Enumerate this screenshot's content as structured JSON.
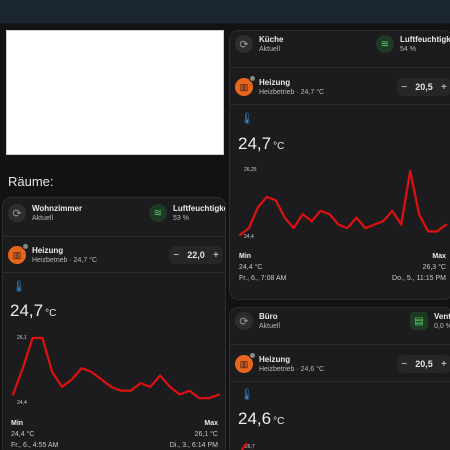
{
  "section_title": "Räume:",
  "wohnzimmer": {
    "room_name": "Wohnzimmer",
    "room_state": "Aktuell",
    "humidity_label": "Luftfeuchtigkeit",
    "humidity_value": "53 %",
    "heating_name": "Heizung",
    "heating_state": "Heizbetrieb · 24,7 °C",
    "setpoint": "22,0",
    "temperature": "24,7",
    "temperature_unit": "°C",
    "chart_max_label": "26,1",
    "chart_min_label": "24,4",
    "min_label": "Min",
    "max_label": "Max",
    "min_value": "24,4 °C",
    "max_value": "26,1 °C",
    "min_time": "Fr., 6., 4:55 AM",
    "max_time": "Di., 3., 6:14 PM"
  },
  "kueche": {
    "room_name": "Küche",
    "room_state": "Aktuell",
    "humidity_label": "Luftfeuchtigkeit",
    "humidity_value": "54 %",
    "heating_name": "Heizung",
    "heating_state": "Heizbetrieb · 24,7 °C",
    "setpoint": "20,5",
    "temperature": "24,7",
    "temperature_unit": "°C",
    "chart_max_label": "26,25",
    "chart_min_label": "24,4",
    "min_label": "Min",
    "max_label": "Max",
    "min_value": "24,4 °C",
    "max_value": "26,3 °C",
    "min_time": "Fr., 6., 7:08 AM",
    "max_time": "Do., 5., 11:15 PM"
  },
  "buero": {
    "room_name": "Büro",
    "room_state": "Aktuell",
    "vent_label": "Venti",
    "vent_value": "0,0 %",
    "heating_name": "Heizung",
    "heating_state": "Heizbetrieb · 24,6 °C",
    "setpoint": "20,5",
    "temperature": "24,6",
    "temperature_unit": "°C",
    "chart_max_label": "26,7"
  },
  "stepper": {
    "minus": "−",
    "plus": "+"
  },
  "icons": {
    "room": "history-icon",
    "humidity": "humidity-icon",
    "heating": "radiator-icon",
    "thermometer": "thermometer-icon",
    "vent": "vent-icon"
  },
  "colors": {
    "line": "#e01010",
    "heating": "#e8651d",
    "humidity": "#5ccf6b",
    "thermometer": "#3a8fd9"
  },
  "chart_data": [
    {
      "type": "line",
      "name": "Wohnzimmer",
      "ylim": [
        24.4,
        26.1
      ],
      "values": [
        24.6,
        25.3,
        26.1,
        26.1,
        25.2,
        24.8,
        25.0,
        25.3,
        25.2,
        25.0,
        24.8,
        24.7,
        24.7,
        24.9,
        24.8,
        25.1,
        24.8,
        24.6,
        24.7,
        24.5,
        24.5,
        24.6
      ]
    },
    {
      "type": "line",
      "name": "Küche",
      "ylim": [
        24.4,
        26.25
      ],
      "values": [
        24.4,
        24.6,
        25.2,
        25.5,
        25.4,
        24.9,
        24.6,
        25.0,
        24.8,
        25.1,
        25.0,
        24.7,
        24.6,
        24.9,
        24.6,
        24.7,
        24.8,
        25.1,
        24.7,
        26.25,
        25.0,
        24.5,
        24.5,
        24.7
      ]
    }
  ]
}
